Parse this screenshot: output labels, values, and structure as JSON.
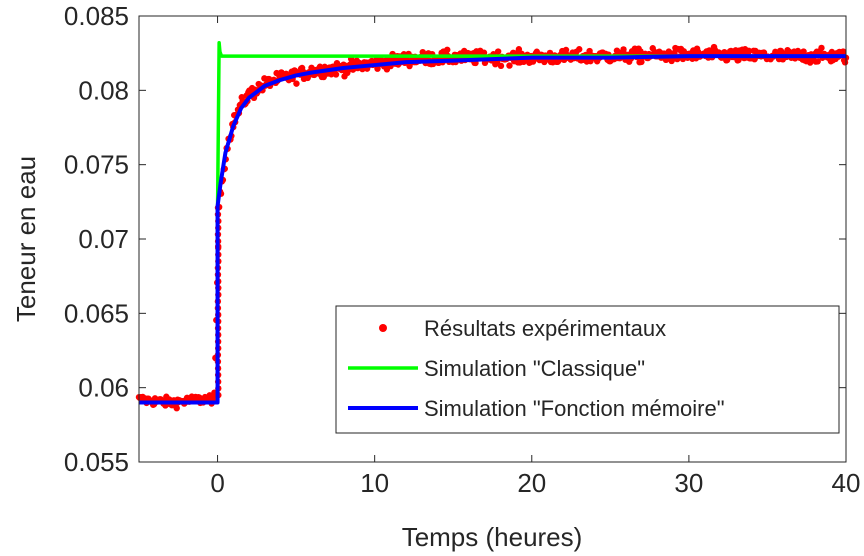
{
  "chart_data": {
    "type": "line",
    "title": "",
    "xlabel": "Temps (heures)",
    "ylabel": "Teneur en eau",
    "xlim": [
      -5,
      40
    ],
    "ylim": [
      0.055,
      0.085
    ],
    "xticks": [
      0,
      10,
      20,
      30,
      40
    ],
    "yticks": [
      0.055,
      0.06,
      0.065,
      0.07,
      0.075,
      0.08,
      0.085
    ],
    "xtick_labels": [
      "0",
      "10",
      "20",
      "30",
      "40"
    ],
    "ytick_labels": [
      "0.055",
      "0.06",
      "0.065",
      "0.07",
      "0.075",
      "0.08",
      "0.085"
    ],
    "grid": false,
    "legend_position": "bottom-right",
    "series": [
      {
        "name": "Résultats expérimentaux",
        "style": "markers",
        "color": "#ff0000",
        "description_model": "noisy measurements around the memory-function curve",
        "x": [
          -5,
          -4,
          -3,
          -2,
          -1,
          -0.2,
          0.1,
          0.3,
          0.6,
          1,
          1.5,
          2,
          3,
          4,
          5,
          6,
          8,
          10,
          12,
          15,
          18,
          20,
          25,
          30,
          35,
          40
        ],
        "y": [
          0.0592,
          0.0591,
          0.059,
          0.0591,
          0.0592,
          0.0593,
          0.0722,
          0.074,
          0.0762,
          0.0778,
          0.079,
          0.0797,
          0.0804,
          0.0808,
          0.081,
          0.0813,
          0.0815,
          0.0818,
          0.0821,
          0.0822,
          0.0822,
          0.0822,
          0.0823,
          0.0824,
          0.0823,
          0.0823
        ]
      },
      {
        "name": "Simulation \"Classique\"",
        "style": "line",
        "color": "#00ff00",
        "x": [
          -5,
          0,
          0,
          0.1,
          0.15,
          0.25,
          40
        ],
        "y": [
          0.059,
          0.059,
          0.072,
          0.0832,
          0.0826,
          0.0823,
          0.0823
        ]
      },
      {
        "name": "Simulation \"Fonction mémoire\"",
        "style": "line",
        "color": "#0000ff",
        "x": [
          -5,
          0,
          0,
          0.2,
          0.5,
          1,
          1.5,
          2,
          3,
          4,
          5,
          6,
          8,
          10,
          12,
          15,
          20,
          25,
          30,
          35,
          40
        ],
        "y": [
          0.059,
          0.059,
          0.0722,
          0.0738,
          0.0758,
          0.0776,
          0.0788,
          0.0795,
          0.0803,
          0.0807,
          0.081,
          0.0812,
          0.0815,
          0.0817,
          0.0819,
          0.082,
          0.0822,
          0.0822,
          0.0823,
          0.0823,
          0.0823
        ]
      }
    ]
  }
}
